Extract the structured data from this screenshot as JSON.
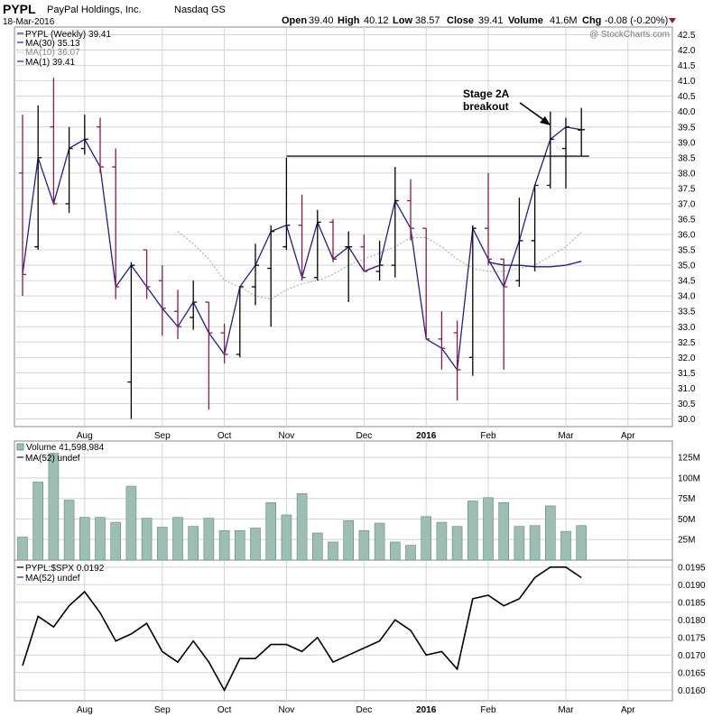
{
  "header": {
    "ticker": "PYPL",
    "company": "PayPal Holdings, Inc.",
    "exchange": "Nasdaq GS",
    "date": "18-Mar-2016",
    "open_label": "Open",
    "open": "39.40",
    "high_label": "High",
    "high": "40.12",
    "low_label": "Low",
    "low": "38.57",
    "close_label": "Close",
    "close": "39.41",
    "volume_label": "Volume",
    "volume": "41.6M",
    "chg_label": "Chg",
    "chg": "-0.08 (-0.20%)",
    "watermark": "@ StockCharts.com"
  },
  "legend": {
    "price": "PYPL (Weekly) 39.41",
    "ma30": "MA(30) 35.13",
    "ma10": "MA(10) 36.07",
    "ma1": "MA(1) 39.41",
    "volume": "Volume 41,598,984",
    "vol_ma": "MA(52) undef",
    "ratio": "PYPL:$SPX 0.0192",
    "ratio_ma": "MA(52) undef"
  },
  "annotation": {
    "line1": "Stage 2A",
    "line2": "breakout"
  },
  "colors": {
    "up": "#000000",
    "down": "#8b1a4a",
    "ma_line": "#1f1f8f",
    "ma10": "#aaaaaa",
    "volume_fill": "#9dbfb2",
    "volume_stroke": "#5e8a7a",
    "grid": "#d4d4d4",
    "ratio": "#000000",
    "chg_arrow": "#8b1a4a"
  },
  "chart_data": [
    {
      "type": "ohlc",
      "title": "PYPL (Weekly)",
      "ylim": [
        29.75,
        42.75
      ],
      "yticks": [
        30.0,
        30.5,
        31.0,
        31.5,
        32.0,
        32.5,
        33.0,
        33.5,
        34.0,
        34.5,
        35.0,
        35.5,
        36.0,
        36.5,
        37.0,
        37.5,
        38.0,
        38.5,
        39.0,
        39.5,
        40.0,
        40.5,
        41.0,
        41.5,
        42.0,
        42.5
      ],
      "xlabels": [
        {
          "label": "Aug",
          "week": 4
        },
        {
          "label": "Sep",
          "week": 9
        },
        {
          "label": "Oct",
          "week": 13
        },
        {
          "label": "Nov",
          "week": 17
        },
        {
          "label": "Dec",
          "week": 22
        },
        {
          "label": "2016",
          "week": 26
        },
        {
          "label": "Feb",
          "week": 30
        },
        {
          "label": "Mar",
          "week": 35
        },
        {
          "label": "Apr",
          "week": 39
        }
      ],
      "bars": [
        {
          "o": 38.0,
          "h": 39.9,
          "l": 34.0,
          "c": 34.7
        },
        {
          "o": 35.6,
          "h": 40.2,
          "l": 35.5,
          "c": 38.5
        },
        {
          "o": 39.5,
          "h": 41.1,
          "l": 37.0,
          "c": 37.0
        },
        {
          "o": 37.0,
          "h": 39.5,
          "l": 36.7,
          "c": 38.8
        },
        {
          "o": 38.8,
          "h": 39.9,
          "l": 38.6,
          "c": 39.1
        },
        {
          "o": 39.5,
          "h": 39.8,
          "l": 38.0,
          "c": 38.2
        },
        {
          "o": 38.2,
          "h": 38.8,
          "l": 33.9,
          "c": 34.3
        },
        {
          "o": 31.2,
          "h": 35.1,
          "l": 30.0,
          "c": 35.0
        },
        {
          "o": 35.5,
          "h": 35.5,
          "l": 33.9,
          "c": 34.3
        },
        {
          "o": 34.5,
          "h": 35.0,
          "l": 32.7,
          "c": 33.6
        },
        {
          "o": 33.5,
          "h": 34.2,
          "l": 32.6,
          "c": 33.0
        },
        {
          "o": 33.3,
          "h": 34.5,
          "l": 32.9,
          "c": 33.8
        },
        {
          "o": 33.8,
          "h": 33.8,
          "l": 30.3,
          "c": 32.8
        },
        {
          "o": 32.8,
          "h": 33.1,
          "l": 31.8,
          "c": 32.1
        },
        {
          "o": 32.1,
          "h": 34.3,
          "l": 32.0,
          "c": 34.3
        },
        {
          "o": 34.3,
          "h": 35.7,
          "l": 33.7,
          "c": 35.0
        },
        {
          "o": 34.9,
          "h": 36.3,
          "l": 33.0,
          "c": 36.1
        },
        {
          "o": 35.6,
          "h": 38.5,
          "l": 35.5,
          "c": 36.3
        },
        {
          "o": 36.3,
          "h": 37.3,
          "l": 34.5,
          "c": 34.6
        },
        {
          "o": 34.6,
          "h": 36.8,
          "l": 34.5,
          "c": 36.4
        },
        {
          "o": 36.4,
          "h": 36.5,
          "l": 35.1,
          "c": 35.2
        },
        {
          "o": 35.6,
          "h": 36.1,
          "l": 33.8,
          "c": 35.6
        },
        {
          "o": 35.6,
          "h": 36.0,
          "l": 34.8,
          "c": 34.8
        },
        {
          "o": 34.8,
          "h": 35.8,
          "l": 34.5,
          "c": 35.0
        },
        {
          "o": 35.0,
          "h": 38.2,
          "l": 34.6,
          "c": 37.1
        },
        {
          "o": 37.1,
          "h": 37.8,
          "l": 35.8,
          "c": 36.2
        },
        {
          "o": 36.2,
          "h": 36.2,
          "l": 32.6,
          "c": 32.6
        },
        {
          "o": 32.6,
          "h": 33.5,
          "l": 31.6,
          "c": 32.3
        },
        {
          "o": 32.8,
          "h": 33.2,
          "l": 30.6,
          "c": 31.6
        },
        {
          "o": 32.0,
          "h": 36.3,
          "l": 31.4,
          "c": 36.2
        },
        {
          "o": 36.2,
          "h": 38.0,
          "l": 35.0,
          "c": 35.2
        },
        {
          "o": 35.2,
          "h": 35.2,
          "l": 31.6,
          "c": 34.3
        },
        {
          "o": 34.5,
          "h": 37.2,
          "l": 34.3,
          "c": 35.8
        },
        {
          "o": 35.8,
          "h": 37.6,
          "l": 34.8,
          "c": 37.6
        },
        {
          "o": 37.6,
          "h": 40.0,
          "l": 37.5,
          "c": 39.1
        },
        {
          "o": 38.8,
          "h": 39.8,
          "l": 37.5,
          "c": 39.5
        },
        {
          "o": 39.4,
          "h": 40.12,
          "l": 38.57,
          "c": 39.41
        }
      ],
      "ma10": [
        null,
        null,
        null,
        null,
        null,
        null,
        null,
        null,
        null,
        null,
        36.1,
        35.7,
        35.2,
        34.5,
        34.3,
        34.0,
        33.9,
        34.2,
        34.4,
        34.5,
        34.7,
        35.0,
        35.2,
        35.4,
        35.6,
        35.9,
        35.9,
        35.6,
        35.2,
        34.9,
        34.8,
        34.8,
        34.9,
        35.0,
        35.3,
        35.6,
        36.07
      ],
      "ma30": [
        null,
        null,
        null,
        null,
        null,
        null,
        null,
        null,
        null,
        null,
        null,
        null,
        null,
        null,
        null,
        null,
        null,
        null,
        null,
        null,
        null,
        null,
        null,
        null,
        null,
        null,
        null,
        null,
        null,
        null,
        35.1,
        35.0,
        35.0,
        34.95,
        34.95,
        35.0,
        35.13
      ],
      "resistance": {
        "value": 38.55,
        "from_week": 17,
        "to_week": 36.5
      }
    },
    {
      "type": "bar",
      "title": "Volume",
      "ylim": [
        0,
        145
      ],
      "yticks": [
        {
          "value": 25,
          "label": "25M"
        },
        {
          "value": 50,
          "label": "50M"
        },
        {
          "value": 75,
          "label": "75M"
        },
        {
          "value": 100,
          "label": "100M"
        },
        {
          "value": 125,
          "label": "125M"
        }
      ],
      "values": [
        28,
        95,
        130,
        73,
        52,
        52,
        46,
        90,
        51,
        40,
        52,
        41,
        51,
        36,
        36,
        39,
        70,
        55,
        81,
        33,
        22,
        48,
        36,
        45,
        22,
        18,
        53,
        46,
        41,
        72,
        76,
        70,
        41,
        42,
        66,
        35,
        42
      ]
    },
    {
      "type": "line",
      "title": "PYPL:$SPX",
      "ylim": [
        0.0157,
        0.0197
      ],
      "yticks": [
        0.016,
        0.0165,
        0.017,
        0.0175,
        0.018,
        0.0185,
        0.019,
        0.0195
      ],
      "ytick_labels": [
        "0.0160",
        "0.0165",
        "0.0170",
        "0.0175",
        "0.0180",
        "0.0185",
        "0.0190",
        "0.0195"
      ],
      "values": [
        0.0167,
        0.0181,
        0.0178,
        0.0184,
        0.0188,
        0.0182,
        0.0174,
        0.0176,
        0.0179,
        0.0171,
        0.0168,
        0.0174,
        0.0168,
        0.016,
        0.0169,
        0.0169,
        0.0173,
        0.0173,
        0.0171,
        0.0175,
        0.0168,
        0.017,
        0.0172,
        0.0174,
        0.018,
        0.0177,
        0.017,
        0.0171,
        0.0166,
        0.0186,
        0.0187,
        0.0184,
        0.0186,
        0.0192,
        0.0195,
        0.0195,
        0.0192
      ]
    }
  ]
}
